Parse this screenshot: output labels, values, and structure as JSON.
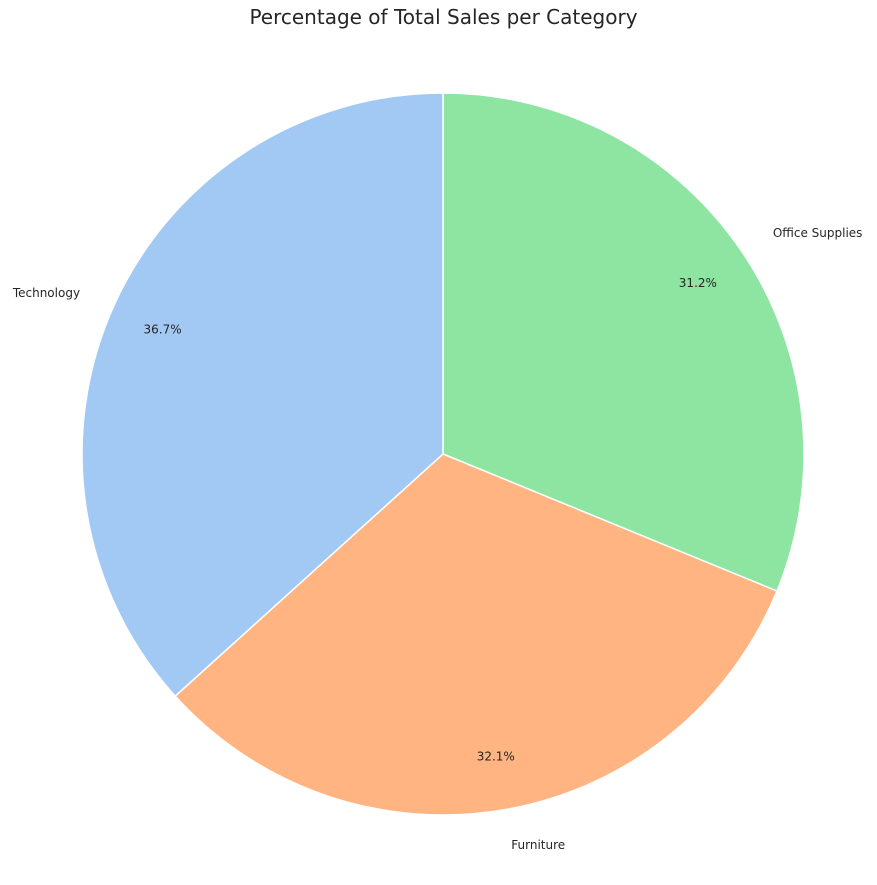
{
  "chart_data": {
    "type": "pie",
    "title": "Percentage of Total Sales per Category",
    "slices": [
      {
        "label": "Office Supplies",
        "value": 31.2,
        "pct_label": "31.2%",
        "color": "#8de5a1"
      },
      {
        "label": "Furniture",
        "value": 32.1,
        "pct_label": "32.1%",
        "color": "#ffb482"
      },
      {
        "label": "Technology",
        "value": 36.7,
        "pct_label": "36.7%",
        "color": "#a1c9f4"
      }
    ],
    "start_angle_deg": 90,
    "direction": "clockwise",
    "legend": "none"
  }
}
